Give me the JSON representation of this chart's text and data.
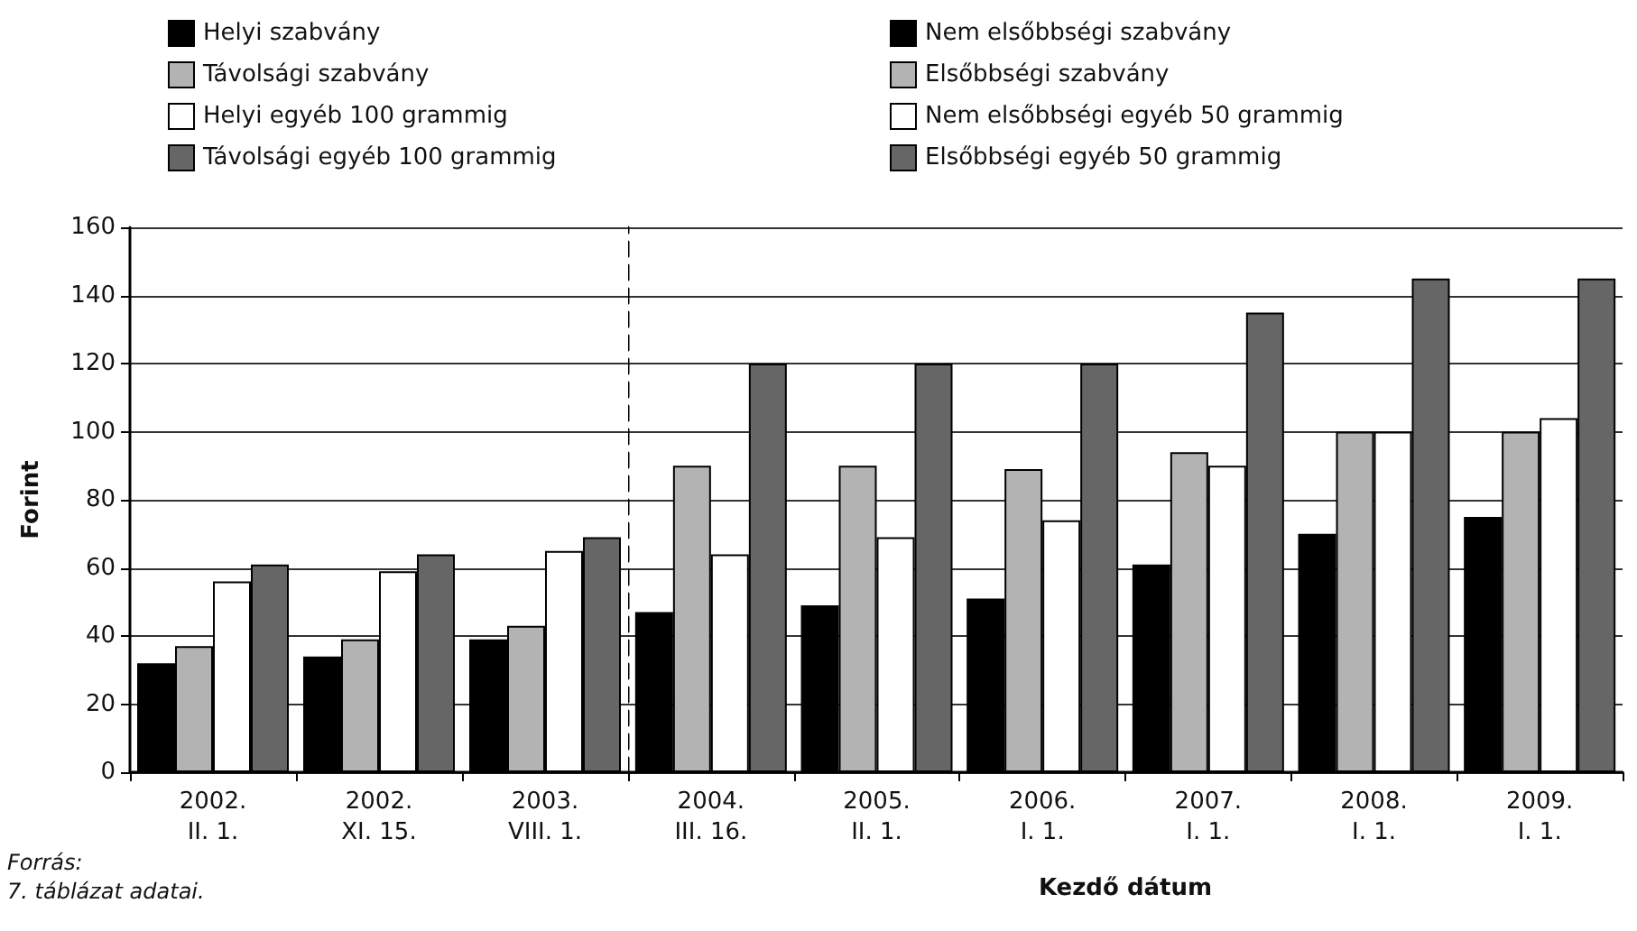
{
  "chart_data": [
    {
      "type": "bar",
      "ylabel": "Forint",
      "annotations": [
        "Forrás:",
        "7. táblázat adatai."
      ],
      "categories": [
        "2002.\nII. 1.",
        "2002.\nXI. 15.",
        "2003.\nVIII. 1."
      ],
      "series": [
        {
          "name": "Helyi szabvány",
          "color": "#000000",
          "values": [
            32,
            34,
            39
          ]
        },
        {
          "name": "Távolsági szabvány",
          "color": "#b3b3b3",
          "values": [
            37,
            39,
            43
          ]
        },
        {
          "name": "Helyi egyéb 100 grammig",
          "color": "#ffffff",
          "values": [
            56,
            59,
            65
          ]
        },
        {
          "name": "Távolsági egyéb 100 grammig",
          "color": "#666666",
          "values": [
            61,
            64,
            69
          ]
        }
      ],
      "ylim": [
        0,
        160
      ],
      "yticks": [
        0,
        20,
        40,
        60,
        80,
        100,
        120,
        140,
        160
      ],
      "grid": "y",
      "legend": "top"
    },
    {
      "type": "bar",
      "xlabel": "Kezdő dátum",
      "categories": [
        "2004.\nIII. 16.",
        "2005.\nII. 1.",
        "2006.\nI. 1.",
        "2007.\nI. 1.",
        "2008.\nI. 1.",
        "2009.\nI. 1."
      ],
      "series": [
        {
          "name": "Nem elsőbbségi szabvány",
          "color": "#000000",
          "values": [
            47,
            49,
            51,
            61,
            70,
            75
          ]
        },
        {
          "name": "Elsőbbségi szabvány",
          "color": "#b3b3b3",
          "values": [
            90,
            90,
            89,
            94,
            100,
            100
          ]
        },
        {
          "name": "Nem elsőbbségi egyéb 50 grammig",
          "color": "#ffffff",
          "values": [
            64,
            69,
            74,
            90,
            100,
            104
          ]
        },
        {
          "name": "Elsőbbségi egyéb 50 grammig",
          "color": "#666666",
          "values": [
            120,
            120,
            120,
            135,
            145,
            145
          ]
        }
      ],
      "ylim": [
        0,
        160
      ],
      "yticks": [
        0,
        20,
        40,
        60,
        80,
        100,
        120,
        140,
        160
      ],
      "tick_labels": "x",
      "grid": "y",
      "legend": "top"
    }
  ]
}
